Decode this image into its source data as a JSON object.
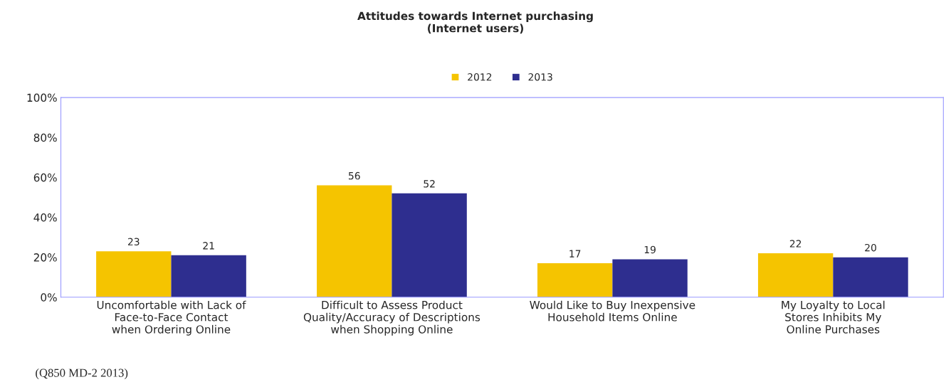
{
  "chart_data": {
    "type": "bar",
    "title": "Attitudes towards Internet purchasing\n(Internet users)",
    "categories": [
      "Uncomfortable with Lack of\nFace-to-Face Contact\nwhen Ordering Online",
      "Difficult to Assess Product\nQuality/Accuracy of Descriptions\nwhen Shopping Online",
      "Would Like to Buy Inexpensive\nHousehold Items Online",
      "My Loyalty to Local\nStores Inhibits My\nOnline Purchases"
    ],
    "series": [
      {
        "name": "2012",
        "color": "#f5c400",
        "values": [
          23,
          56,
          17,
          22
        ]
      },
      {
        "name": "2013",
        "color": "#2e2e8f",
        "values": [
          21,
          52,
          19,
          20
        ]
      }
    ],
    "ylim": [
      0,
      100
    ],
    "yticks": [
      {
        "value": 0,
        "label": "0%"
      },
      {
        "value": 20,
        "label": "20%"
      },
      {
        "value": 40,
        "label": "40%"
      },
      {
        "value": 60,
        "label": "60%"
      },
      {
        "value": 80,
        "label": "80%"
      },
      {
        "value": 100,
        "label": "100%"
      }
    ],
    "data_labels": true,
    "grid": false,
    "legend": "top",
    "annotations": [
      "(Q850 MD-2 2013)"
    ]
  }
}
